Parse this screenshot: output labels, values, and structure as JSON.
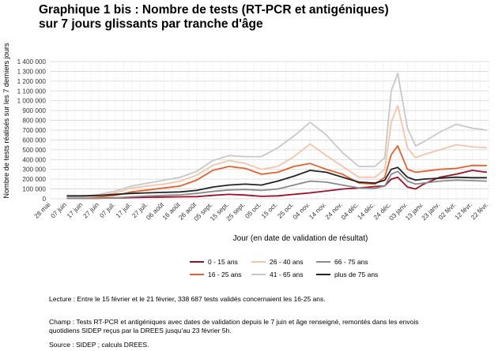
{
  "title": {
    "line1": "Graphique 1 bis : Nombre de tests (RT-PCR et antigéniques)",
    "line2": "sur 7 jours glissants par tranche d'âge"
  },
  "notes": {
    "lecture": "Lecture : Entre le 15 février et le 21 février, 338 687 tests validés concernaient les 16-25 ans.",
    "champ_line1": "Champ : Tests RT-PCR et antigéniques avec dates de validation depuis le 7 juin et âge renseigné, remontés dans les envois",
    "champ_line2": "quotidiens SIDEP reçus par la DREES jusqu'au 23 février 5h.",
    "source": "Source : SIDEP ; calculs DREES."
  },
  "chart_data": {
    "type": "line",
    "xlabel": "Jour (en date de validation de résultat)",
    "ylabel": "Nombre de tests réalisés sur les 7 derniers jours",
    "ylim": [
      0,
      1400000
    ],
    "y_ticks": [
      0,
      100000,
      200000,
      300000,
      400000,
      500000,
      600000,
      700000,
      800000,
      900000,
      1000000,
      1100000,
      1200000,
      1300000,
      1400000
    ],
    "y_tick_labels": [
      "0",
      "100 000",
      "200 000",
      "300 000",
      "400 000",
      "500 000",
      "600 000",
      "700 000",
      "800 000",
      "900 000",
      "1 000 000",
      "1 100 000",
      "1 200 000",
      "1 300 000",
      "1 400 000"
    ],
    "x_range": [
      "2021-05-28",
      "2022-02-22"
    ],
    "x_ticks": [
      "2021-05-28",
      "2021-06-07",
      "2021-06-17",
      "2021-06-27",
      "2021-07-07",
      "2021-07-17",
      "2021-07-27",
      "2021-08-06",
      "2021-08-16",
      "2021-08-26",
      "2021-09-05",
      "2021-09-15",
      "2021-09-25",
      "2021-10-05",
      "2021-10-15",
      "2021-10-25",
      "2021-11-04",
      "2021-11-14",
      "2021-11-24",
      "2021-12-04",
      "2021-12-14",
      "2021-12-24",
      "2022-01-03",
      "2022-01-13",
      "2022-01-23",
      "2022-02-02",
      "2022-02-12",
      "2022-02-22"
    ],
    "x_tick_labels": [
      "28 mai",
      "07 juin",
      "17 juin",
      "27 juin",
      "07 juil.",
      "17 juil.",
      "27 juil.",
      "06 août",
      "16 août",
      "26 août",
      "05 sept.",
      "15 sept.",
      "25 sept.",
      "05 oct.",
      "15 oct.",
      "25 oct.",
      "04 nov.",
      "14 nov.",
      "24 nov.",
      "04 déc.",
      "14 déc.",
      "24 déc.",
      "03 janv.",
      "13 janv.",
      "23 janv.",
      "02 févr.",
      "12 févr.",
      "22 févr."
    ],
    "grid": true,
    "legend_position": "bottom",
    "x": [
      "2021-06-07",
      "2021-06-17",
      "2021-06-27",
      "2021-07-07",
      "2021-07-17",
      "2021-07-27",
      "2021-08-06",
      "2021-08-16",
      "2021-08-26",
      "2021-09-05",
      "2021-09-15",
      "2021-09-25",
      "2021-10-05",
      "2021-10-15",
      "2021-10-25",
      "2021-11-04",
      "2021-11-14",
      "2021-11-24",
      "2021-12-04",
      "2021-12-14",
      "2021-12-20",
      "2021-12-24",
      "2021-12-28",
      "2022-01-03",
      "2022-01-08",
      "2022-01-13",
      "2022-01-23",
      "2022-02-02",
      "2022-02-12",
      "2022-02-21"
    ],
    "series": [
      {
        "name": "0 - 15 ans",
        "color": "#9e0e28",
        "values": [
          5000,
          5000,
          6000,
          8000,
          12000,
          15000,
          18000,
          20000,
          22000,
          35000,
          45000,
          38000,
          25000,
          30000,
          45000,
          60000,
          80000,
          100000,
          110000,
          125000,
          130000,
          200000,
          220000,
          120000,
          100000,
          150000,
          220000,
          250000,
          290000,
          270000
        ]
      },
      {
        "name": "16 - 25 ans",
        "color": "#e4612c",
        "values": [
          10000,
          12000,
          18000,
          35000,
          70000,
          90000,
          110000,
          130000,
          190000,
          290000,
          330000,
          310000,
          250000,
          270000,
          330000,
          360000,
          300000,
          250000,
          160000,
          150000,
          220000,
          450000,
          540000,
          300000,
          270000,
          280000,
          300000,
          310000,
          340000,
          338687
        ]
      },
      {
        "name": "26 - 40 ans",
        "color": "#f5c4a8",
        "values": [
          12000,
          15000,
          30000,
          60000,
          110000,
          130000,
          150000,
          180000,
          240000,
          340000,
          390000,
          360000,
          300000,
          330000,
          430000,
          560000,
          440000,
          330000,
          220000,
          220000,
          300000,
          780000,
          950000,
          520000,
          420000,
          450000,
          500000,
          550000,
          530000,
          520000
        ]
      },
      {
        "name": "41 - 65 ans",
        "color": "#c8c8c8",
        "values": [
          20000,
          22000,
          45000,
          80000,
          130000,
          160000,
          190000,
          220000,
          280000,
          390000,
          440000,
          430000,
          430000,
          520000,
          640000,
          780000,
          650000,
          470000,
          330000,
          330000,
          420000,
          1100000,
          1280000,
          720000,
          540000,
          580000,
          680000,
          760000,
          720000,
          700000
        ]
      },
      {
        "name": "66 - 75 ans",
        "color": "#8a8a8a",
        "values": [
          5000,
          5000,
          7000,
          10000,
          20000,
          28000,
          35000,
          40000,
          55000,
          75000,
          90000,
          95000,
          85000,
          100000,
          140000,
          180000,
          170000,
          140000,
          110000,
          105000,
          130000,
          250000,
          280000,
          180000,
          150000,
          160000,
          180000,
          190000,
          185000,
          180000
        ]
      },
      {
        "name": "plus de 75 ans",
        "color": "#222222",
        "values": [
          30000,
          30000,
          35000,
          45000,
          55000,
          60000,
          65000,
          70000,
          85000,
          120000,
          140000,
          150000,
          140000,
          180000,
          230000,
          290000,
          270000,
          220000,
          170000,
          160000,
          190000,
          300000,
          320000,
          220000,
          190000,
          200000,
          210000,
          220000,
          215000,
          215000
        ]
      }
    ]
  }
}
